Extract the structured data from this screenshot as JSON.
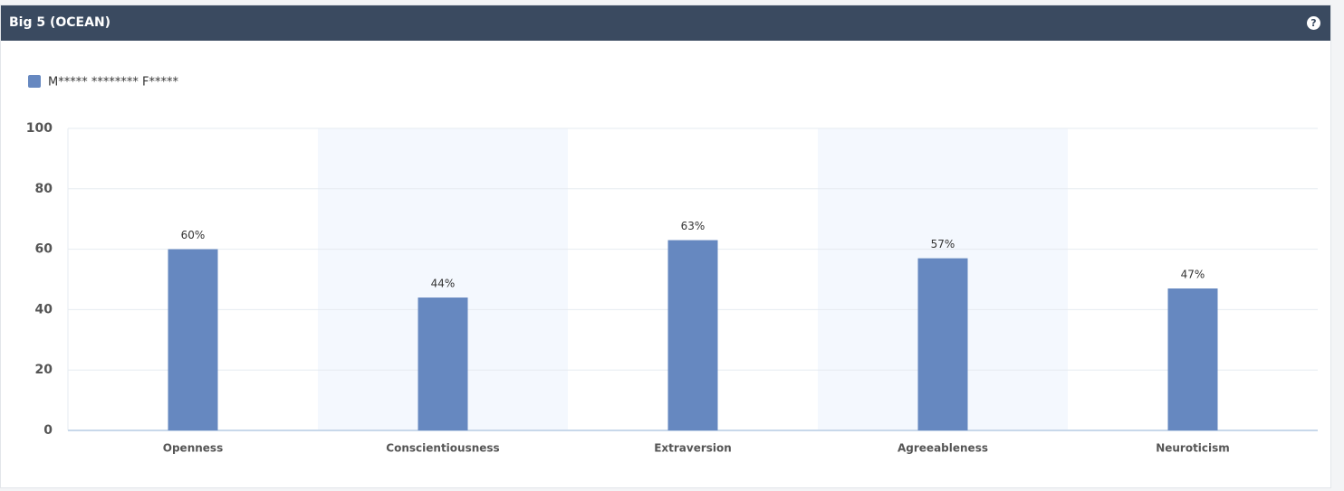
{
  "header": {
    "title": "Big 5 (OCEAN)",
    "help_icon": "?"
  },
  "chart_data": {
    "type": "bar",
    "categories": [
      "Openness",
      "Conscientiousness",
      "Extraversion",
      "Agreeableness",
      "Neuroticism"
    ],
    "series": [
      {
        "name": "M***** ******** F*****",
        "color": "#6688c0",
        "values": [
          60,
          44,
          63,
          57,
          47
        ],
        "value_labels": [
          "60%",
          "44%",
          "63%",
          "57%",
          "47%"
        ]
      }
    ],
    "ylim": [
      0,
      100
    ],
    "yticks": [
      0,
      20,
      40,
      60,
      80,
      100
    ],
    "grid": true,
    "alternate_band_color": "#f4f8fe",
    "legend": "top-left"
  }
}
